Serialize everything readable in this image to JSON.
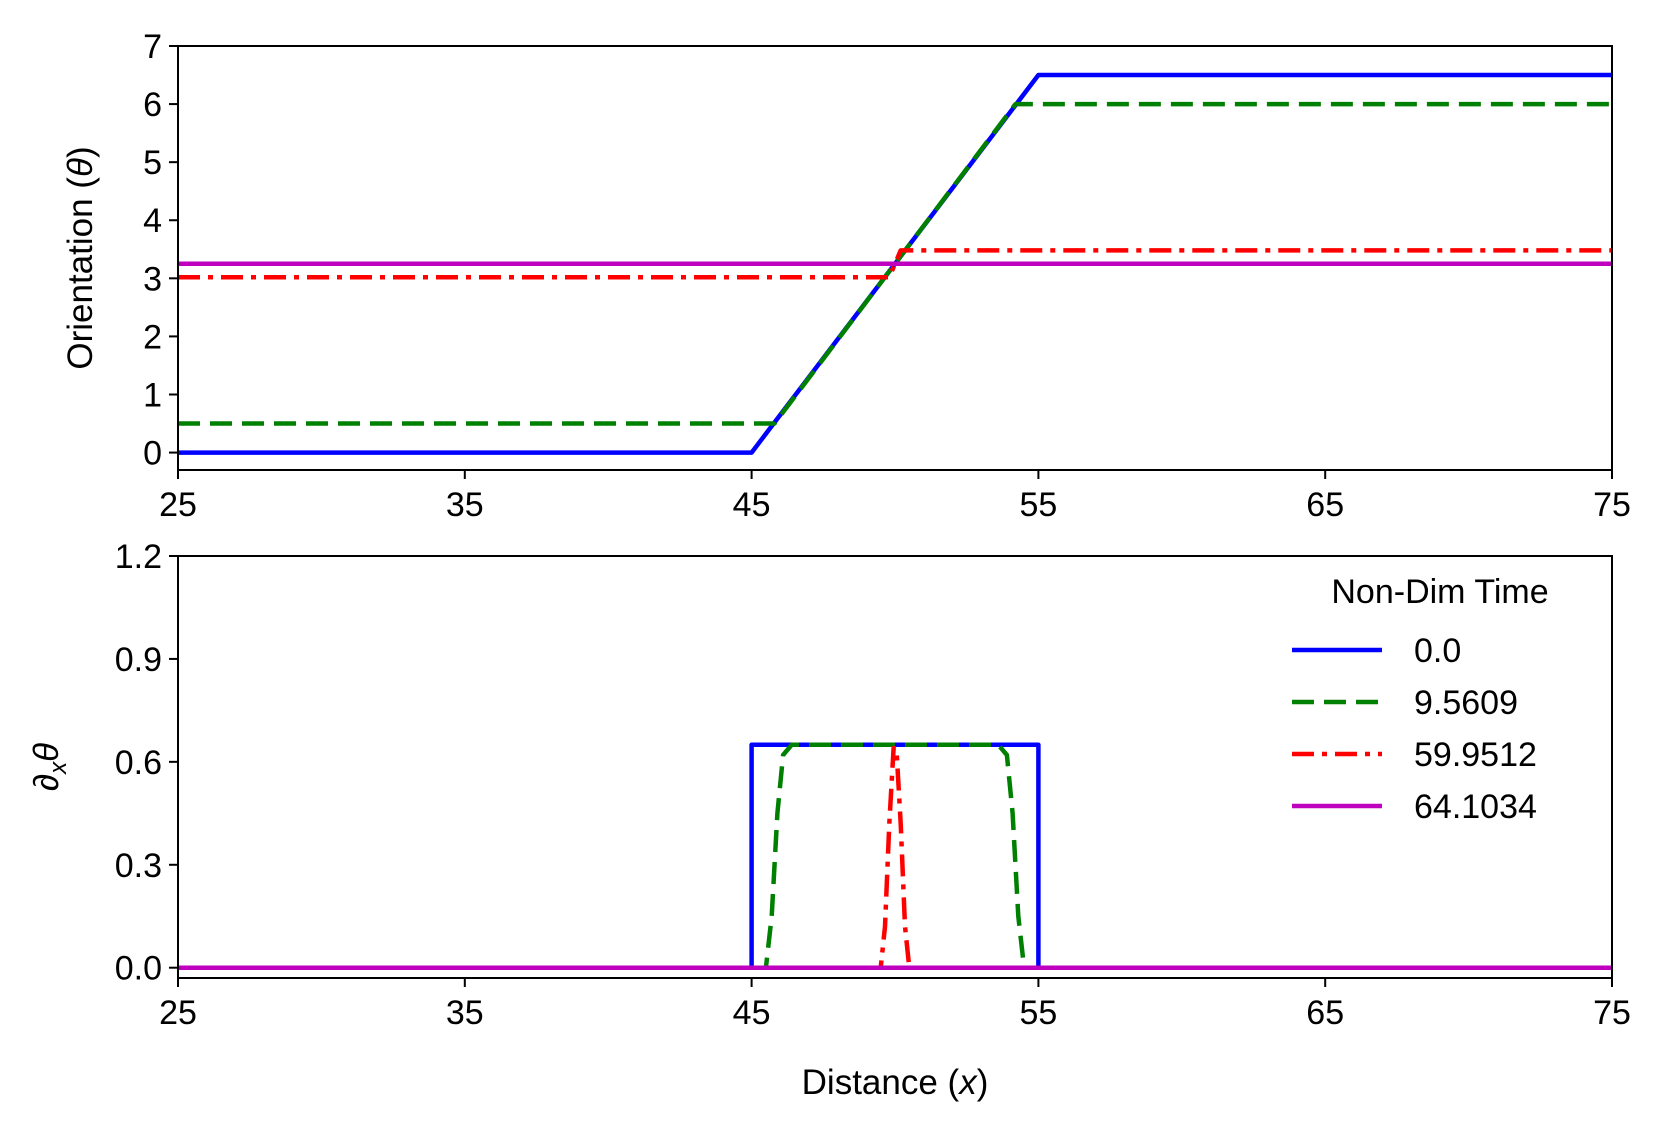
{
  "chart_data": [
    {
      "type": "line",
      "title": "",
      "xlabel": "",
      "ylabel": "Orientation (θ)",
      "ylabel_parts": {
        "main": "Orientation (",
        "symbol": "θ",
        "close": ")"
      },
      "xlim": [
        25,
        75
      ],
      "ylim": [
        -0.3,
        7
      ],
      "xticks": [
        25,
        35,
        45,
        55,
        65,
        75
      ],
      "yticks": [
        0,
        1,
        2,
        3,
        4,
        5,
        6,
        7
      ],
      "xtick_labels": [
        "25",
        "35",
        "45",
        "55",
        "65",
        "75"
      ],
      "ytick_labels": [
        "0",
        "1",
        "2",
        "3",
        "4",
        "5",
        "6",
        "7"
      ],
      "grid": false,
      "series": [
        {
          "key": "t0",
          "x": [
            25,
            45,
            55,
            75
          ],
          "y": [
            0,
            0,
            6.5,
            6.5
          ]
        },
        {
          "key": "t1",
          "x": [
            25,
            45.8,
            54.2,
            75
          ],
          "y": [
            0.5,
            0.5,
            6.0,
            6.0
          ]
        },
        {
          "key": "t2",
          "x": [
            25,
            49.8,
            50.2,
            75
          ],
          "y": [
            3.02,
            3.02,
            3.48,
            3.48
          ]
        },
        {
          "key": "t3",
          "x": [
            25,
            75
          ],
          "y": [
            3.25,
            3.25
          ]
        }
      ]
    },
    {
      "type": "line",
      "title": "",
      "xlabel": "Distance (x)",
      "xlabel_parts": {
        "main": "Distance (",
        "symbol": "x",
        "close": ")"
      },
      "ylabel": "∂xθ",
      "ylabel_parts": {
        "main": "∂",
        "sub": "x",
        "symbol": "θ"
      },
      "xlim": [
        25,
        75
      ],
      "ylim": [
        -0.03,
        1.2
      ],
      "xticks": [
        25,
        35,
        45,
        55,
        65,
        75
      ],
      "yticks": [
        0.0,
        0.3,
        0.6,
        0.9,
        1.2
      ],
      "xtick_labels": [
        "25",
        "35",
        "45",
        "55",
        "65",
        "75"
      ],
      "ytick_labels": [
        "0.0",
        "0.3",
        "0.6",
        "0.9",
        "1.2"
      ],
      "grid": false,
      "legend": {
        "title": "Non-Dim Time",
        "placement": "top-right"
      },
      "series": [
        {
          "key": "t0",
          "name": "0.0",
          "x": [
            25,
            45,
            45,
            55,
            55,
            75
          ],
          "y": [
            0,
            0,
            0.65,
            0.65,
            0,
            0
          ]
        },
        {
          "key": "t1",
          "name": "9.5609",
          "x": [
            25,
            45.5,
            45.7,
            45.9,
            46.1,
            46.4,
            53.6,
            53.9,
            54.1,
            54.3,
            54.5,
            75
          ],
          "y": [
            0,
            0,
            0.15,
            0.45,
            0.62,
            0.65,
            0.65,
            0.62,
            0.45,
            0.15,
            0,
            0
          ]
        },
        {
          "key": "t2",
          "name": "59.9512",
          "x": [
            25,
            49.5,
            49.65,
            49.8,
            49.95,
            50.05,
            50.2,
            50.35,
            50.5,
            75
          ],
          "y": [
            0,
            0,
            0.12,
            0.42,
            0.64,
            0.64,
            0.42,
            0.12,
            0,
            0
          ]
        },
        {
          "key": "t3",
          "name": "64.1034",
          "x": [
            25,
            75
          ],
          "y": [
            0,
            0
          ]
        }
      ]
    }
  ],
  "styles": {
    "t0": {
      "color": "#0000ff",
      "dash": "none"
    },
    "t1": {
      "color": "#008000",
      "dash": "22,10"
    },
    "t2": {
      "color": "#ff0000",
      "dash": "22,8,5,8"
    },
    "t3": {
      "color": "#bf00bf",
      "dash": "none"
    }
  }
}
